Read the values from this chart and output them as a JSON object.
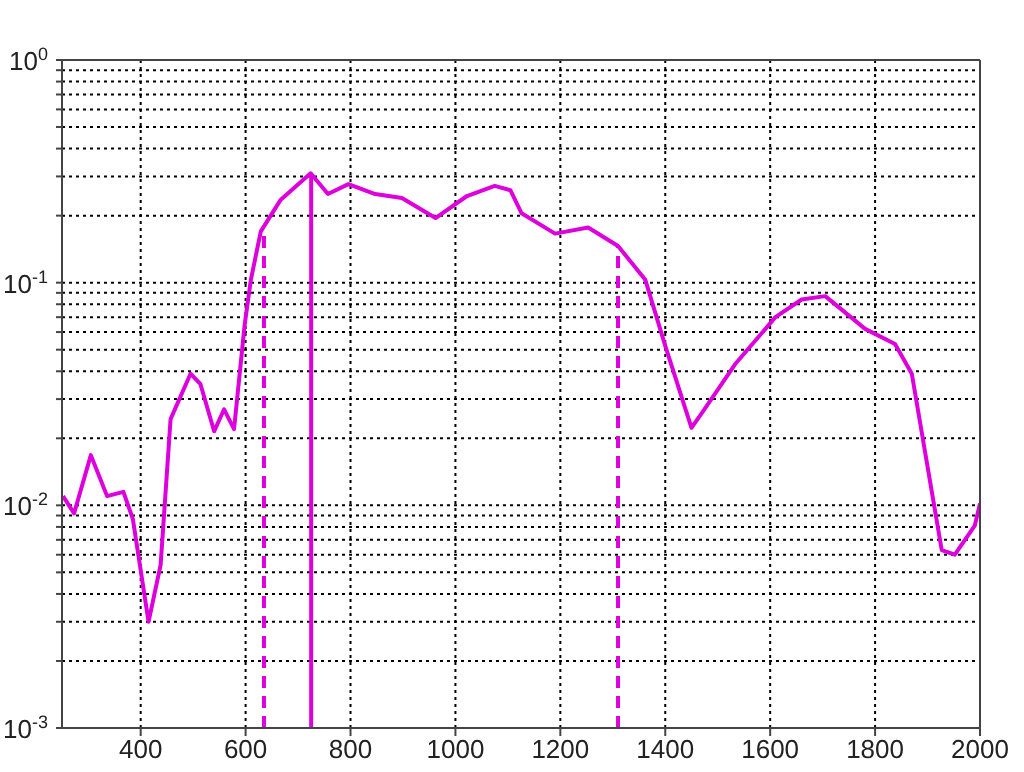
{
  "chart_data": {
    "type": "line",
    "log": "y",
    "grid": true,
    "marker": "none",
    "xlim": [
      250,
      2000
    ],
    "xticks": [
      400,
      600,
      800,
      1000,
      1200,
      1400,
      1600,
      1800,
      2000
    ],
    "ylim": [
      0.001,
      1
    ],
    "yticks": [
      {
        "value": 0.001,
        "label": "10$^{-3}$"
      },
      {
        "value": 0.002,
        "label": null
      },
      {
        "value": 0.003,
        "label": null
      },
      {
        "value": 0.004,
        "label": null
      },
      {
        "value": 0.005,
        "label": null
      },
      {
        "value": 0.006,
        "label": null
      },
      {
        "value": 0.007,
        "label": null
      },
      {
        "value": 0.008,
        "label": null
      },
      {
        "value": 0.009,
        "label": null
      },
      {
        "value": 0.01,
        "label": "10$^{-2}$"
      },
      {
        "value": 0.02,
        "label": null
      },
      {
        "value": 0.03,
        "label": null
      },
      {
        "value": 0.04,
        "label": null
      },
      {
        "value": 0.05,
        "label": null
      },
      {
        "value": 0.06,
        "label": null
      },
      {
        "value": 0.07,
        "label": null
      },
      {
        "value": 0.08,
        "label": null
      },
      {
        "value": 0.09,
        "label": null
      },
      {
        "value": 0.1,
        "label": "10$^{-1}$"
      },
      {
        "value": 0.2,
        "label": null
      },
      {
        "value": 0.3,
        "label": null
      },
      {
        "value": 0.4,
        "label": null
      },
      {
        "value": 0.5,
        "label": null
      },
      {
        "value": 0.6,
        "label": null
      },
      {
        "value": 0.7,
        "label": null
      },
      {
        "value": 0.8,
        "label": null
      },
      {
        "value": 0.9,
        "label": null
      },
      {
        "value": 1,
        "label": "10$^{0}$"
      }
    ],
    "series": [
      {
        "color": "#dd00dd",
        "line_style": "solid",
        "x": [
          252,
          273,
          305,
          336,
          367,
          385,
          415,
          438,
          457,
          495,
          514,
          540,
          559,
          578,
          598,
          610,
          629,
          667,
          724,
          757,
          796,
          847,
          898,
          962,
          1022,
          1075,
          1105,
          1126,
          1190,
          1253,
          1310,
          1362,
          1400,
          1450,
          1470,
          1533,
          1610,
          1660,
          1705,
          1781,
          1838,
          1870,
          1927,
          1952,
          1990,
          2000
        ],
        "values": [
          0.011,
          0.0092,
          0.0168,
          0.011,
          0.0115,
          0.0087,
          0.003,
          0.0054,
          0.0244,
          0.039,
          0.035,
          0.0215,
          0.027,
          0.022,
          0.064,
          0.103,
          0.17,
          0.236,
          0.31,
          0.25,
          0.277,
          0.25,
          0.24,
          0.195,
          0.245,
          0.272,
          0.26,
          0.205,
          0.166,
          0.177,
          0.146,
          0.103,
          0.052,
          0.0223,
          0.026,
          0.043,
          0.07,
          0.084,
          0.087,
          0.062,
          0.053,
          0.039,
          0.0063,
          0.006,
          0.0081,
          0.0102
        ]
      },
      {
        "color": "#dd00dd",
        "line_style": "solid",
        "x": [
          725,
          725
        ],
        "values": [
          0.001,
          0.31
        ]
      },
      {
        "color": "#dd00dd",
        "line_style": "dashed",
        "x": [
          635,
          635
        ],
        "values": [
          0.001,
          0.17
        ]
      },
      {
        "color": "#dd00dd",
        "line_style": "dashed",
        "x": [
          1310,
          1310
        ],
        "values": [
          0.001,
          0.146
        ]
      }
    ]
  }
}
